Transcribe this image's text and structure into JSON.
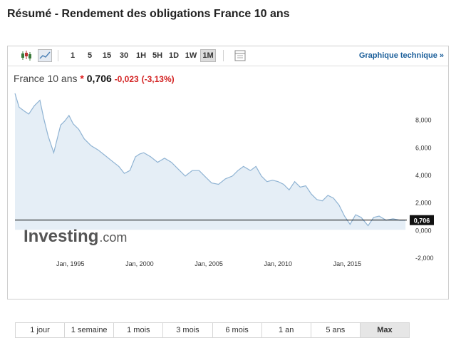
{
  "page": {
    "title": "Résumé - Rendement des obligations France 10 ans"
  },
  "toolbar": {
    "intervals": [
      "1",
      "5",
      "15",
      "30",
      "1H",
      "5H",
      "1D",
      "1W",
      "1M"
    ],
    "active_interval": "1M",
    "tech_link": "Graphique technique »"
  },
  "quote": {
    "name": "France 10 ans",
    "star": "*",
    "price": "0,706",
    "change": "-0,023",
    "change_pct": "(-3,13%)"
  },
  "branding": {
    "logo_text": "Investing",
    "logo_suffix": ".com"
  },
  "ranges": {
    "items": [
      "1 jour",
      "1 semaine",
      "1 mois",
      "3 mois",
      "6 mois",
      "1 an",
      "5 ans",
      "Max"
    ],
    "active": "Max"
  },
  "colors": {
    "line": "#8fb3d3",
    "area": "#e5eef6",
    "negative": "#d32222",
    "link": "#1a5e9a",
    "logo": "#555555"
  },
  "chart_data": {
    "type": "area",
    "title": "",
    "xlabel": "",
    "ylabel": "",
    "ylim": [
      -2.0,
      10.0
    ],
    "xlim": [
      1991.0,
      2019.3
    ],
    "y_ticks": [
      "8,000",
      "6,000",
      "4,000",
      "2,000",
      "0,000",
      "-2,000"
    ],
    "y_tick_values": [
      8.0,
      6.0,
      4.0,
      2.0,
      0.0,
      -2.0
    ],
    "x_ticks": [
      "Jan, 1995",
      "Jan, 2000",
      "Jan, 2005",
      "Jan, 2010",
      "Jan, 2015"
    ],
    "x_tick_values": [
      1995,
      2000,
      2005,
      2010,
      2015
    ],
    "current_value_label": "0,706",
    "current_value": 0.706,
    "series": [
      {
        "x": [
          1991.0,
          1991.3,
          1991.7,
          1992.0,
          1992.4,
          1992.8,
          1993.1,
          1993.4,
          1993.8,
          1994.0,
          1994.3,
          1994.6,
          1994.9,
          1995.2,
          1995.6,
          1996.0,
          1996.5,
          1997.0,
          1997.5,
          1998.0,
          1998.5,
          1998.9,
          1999.3,
          1999.7,
          2000.0,
          2000.3,
          2000.8,
          2001.3,
          2001.8,
          2002.3,
          2002.8,
          2003.3,
          2003.8,
          2004.3,
          2004.8,
          2005.2,
          2005.7,
          2006.2,
          2006.7,
          2007.1,
          2007.5,
          2008.0,
          2008.4,
          2008.8,
          2009.2,
          2009.6,
          2010.0,
          2010.4,
          2010.8,
          2011.2,
          2011.6,
          2012.0,
          2012.4,
          2012.8,
          2013.2,
          2013.6,
          2014.0,
          2014.4,
          2014.8,
          2015.2,
          2015.6,
          2016.0,
          2016.5,
          2016.9,
          2017.3,
          2017.8,
          2018.3,
          2018.8,
          2019.2
        ],
        "y": [
          9.9,
          8.9,
          8.6,
          8.4,
          9.0,
          9.4,
          8.0,
          6.8,
          5.6,
          6.4,
          7.6,
          7.9,
          8.3,
          7.7,
          7.3,
          6.6,
          6.1,
          5.8,
          5.4,
          5.0,
          4.6,
          4.1,
          4.3,
          5.3,
          5.5,
          5.6,
          5.3,
          4.9,
          5.2,
          4.9,
          4.4,
          3.9,
          4.3,
          4.3,
          3.8,
          3.4,
          3.3,
          3.7,
          3.9,
          4.3,
          4.6,
          4.3,
          4.6,
          3.9,
          3.5,
          3.6,
          3.5,
          3.3,
          2.9,
          3.5,
          3.1,
          3.2,
          2.6,
          2.2,
          2.1,
          2.5,
          2.3,
          1.8,
          1.0,
          0.4,
          1.1,
          0.9,
          0.3,
          0.9,
          1.0,
          0.7,
          0.8,
          0.7,
          0.7
        ]
      }
    ]
  }
}
